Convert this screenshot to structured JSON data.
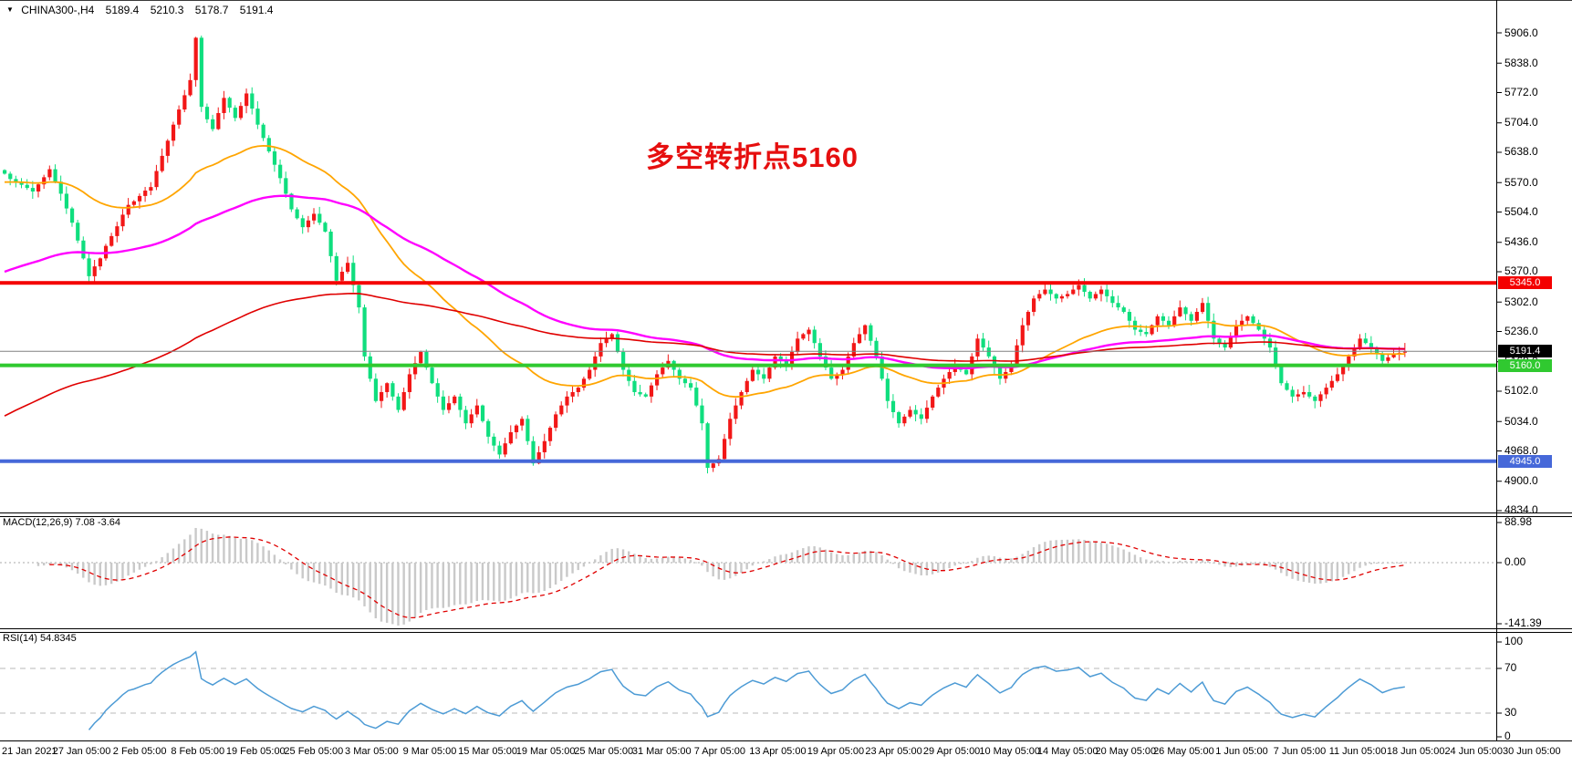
{
  "header": {
    "symbol": "CHINA300-,H4",
    "open": "5189.4",
    "high": "5210.3",
    "low": "5178.7",
    "close": "5191.4",
    "collapse_icon": "▼"
  },
  "annotation": {
    "text": "多空转折点5160",
    "color": "#e60f0f"
  },
  "colors": {
    "bull": "#f21717",
    "bear": "#0fde7e",
    "macd_hist": "#c9c9c9",
    "macd_signal": "#e00000",
    "rsi_line": "#4d9bd5",
    "level_dashed": "#b9b9b9",
    "price_line": "#808080",
    "last_tag_bg": "#000000"
  },
  "main_chart": {
    "y_ticks": [
      "5906.0",
      "5838.0",
      "5772.0",
      "5704.0",
      "5638.0",
      "5570.0",
      "5504.0",
      "5436.0",
      "5370.0",
      "5302.0",
      "5236.0",
      "5168.0",
      "5102.0",
      "5034.0",
      "4968.0",
      "4900.0",
      "4834.0"
    ],
    "hlines": [
      {
        "price": 5345.0,
        "label": "5345.0",
        "color": "#f40000",
        "thickness": 4
      },
      {
        "price": 5160.0,
        "label": "5160.0",
        "color": "#30c930",
        "thickness": 4
      },
      {
        "price": 4945.0,
        "label": "4945.0",
        "color": "#4668d9",
        "thickness": 4
      }
    ],
    "price_line": {
      "price": 5191.4,
      "label": "5191.4"
    }
  },
  "chart_data": {
    "type": "candlestick",
    "symbol": "CHINA300-",
    "timeframe": "H4",
    "title": "CHINA300-,H4 5189.4 5210.3 5178.7 5191.4",
    "ylim": [
      4822,
      5939
    ],
    "up_color_convention": "red-up-green-down",
    "closes": [
      5590,
      5578,
      5570,
      5565,
      5558,
      5550,
      5566,
      5582,
      5600,
      5572,
      5545,
      5512,
      5480,
      5440,
      5400,
      5360,
      5382,
      5400,
      5428,
      5450,
      5472,
      5498,
      5520,
      5528,
      5540,
      5552,
      5560,
      5596,
      5630,
      5664,
      5700,
      5734,
      5766,
      5800,
      5895,
      5740,
      5712,
      5690,
      5726,
      5760,
      5738,
      5715,
      5742,
      5770,
      5736,
      5700,
      5670,
      5640,
      5610,
      5580,
      5545,
      5510,
      5490,
      5470,
      5485,
      5500,
      5480,
      5460,
      5405,
      5350,
      5370,
      5390,
      5340,
      5290,
      5180,
      5130,
      5080,
      5100,
      5120,
      5090,
      5060,
      5100,
      5140,
      5165,
      5190,
      5155,
      5120,
      5090,
      5060,
      5075,
      5090,
      5060,
      5030,
      5050,
      5070,
      5035,
      5000,
      4980,
      4960,
      4985,
      5010,
      5025,
      5040,
      4990,
      4940,
      4965,
      4990,
      5020,
      5050,
      5070,
      5090,
      5100,
      5110,
      5130,
      5150,
      5180,
      5210,
      5220,
      5230,
      5190,
      5150,
      5125,
      5100,
      5095,
      5090,
      5115,
      5140,
      5155,
      5170,
      5150,
      5130,
      5120,
      5110,
      5070,
      5030,
      4930,
      4940,
      4950,
      4995,
      5040,
      5070,
      5100,
      5125,
      5150,
      5140,
      5130,
      5155,
      5180,
      5170,
      5160,
      5190,
      5220,
      5230,
      5240,
      5210,
      5180,
      5155,
      5130,
      5140,
      5150,
      5180,
      5210,
      5230,
      5250,
      5215,
      5180,
      5130,
      5080,
      5055,
      5030,
      5045,
      5060,
      5050,
      5040,
      5065,
      5090,
      5110,
      5130,
      5145,
      5160,
      5150,
      5140,
      5180,
      5220,
      5200,
      5180,
      5155,
      5130,
      5145,
      5160,
      5205,
      5250,
      5280,
      5310,
      5320,
      5330,
      5320,
      5310,
      5315,
      5320,
      5330,
      5340,
      5325,
      5310,
      5320,
      5330,
      5315,
      5300,
      5290,
      5280,
      5260,
      5240,
      5235,
      5230,
      5250,
      5270,
      5260,
      5250,
      5270,
      5290,
      5275,
      5260,
      5280,
      5300,
      5260,
      5220,
      5210,
      5200,
      5225,
      5250,
      5260,
      5270,
      5255,
      5240,
      5220,
      5200,
      5160,
      5120,
      5105,
      5090,
      5095,
      5100,
      5090,
      5080,
      5095,
      5110,
      5125,
      5140,
      5160,
      5180,
      5200,
      5220,
      5210,
      5200,
      5185,
      5170,
      5178,
      5185,
      5188,
      5191.4
    ],
    "last_ohlc": {
      "open": 5189.4,
      "high": 5210.3,
      "low": 5178.7,
      "close": 5191.4
    },
    "moving_averages": [
      {
        "name": "ma-fast",
        "color": "#ffa500",
        "seed": 5570,
        "k": 0.05,
        "width": 1.8
      },
      {
        "name": "ma-medium",
        "color": "#ff00ff",
        "seed": 5365,
        "k": 0.022,
        "width": 2.4
      },
      {
        "name": "ma-slow",
        "color": "#e00000",
        "seed": 5040,
        "k": 0.012,
        "width": 1.6
      }
    ],
    "macd": {
      "label": "MACD(12,26,9) 7.08 -3.64",
      "params": [
        12,
        26,
        9
      ],
      "main_value": 7.08,
      "signal_value": -3.64,
      "ticks": [
        "88.98",
        "0.00",
        "-141.39"
      ]
    },
    "rsi": {
      "label": "RSI(14) 54.8345",
      "period": 14,
      "value": 54.8345,
      "ticks": [
        "100",
        "70",
        "30",
        "0"
      ],
      "levels": [
        70,
        30
      ]
    },
    "x_labels": [
      "21 Jan 2021",
      "27 Jan 05:00",
      "2 Feb 05:00",
      "8 Feb 05:00",
      "19 Feb 05:00",
      "25 Feb 05:00",
      "3 Mar 05:00",
      "9 Mar 05:00",
      "15 Mar 05:00",
      "19 Mar 05:00",
      "25 Mar 05:00",
      "31 Mar 05:00",
      "7 Apr 05:00",
      "13 Apr 05:00",
      "19 Apr 05:00",
      "23 Apr 05:00",
      "29 Apr 05:00",
      "10 May 05:00",
      "14 May 05:00",
      "20 May 05:00",
      "26 May 05:00",
      "1 Jun 05:00",
      "7 Jun 05:00",
      "11 Jun 05:00",
      "18 Jun 05:00",
      "24 Jun 05:00",
      "30 Jun 05:00"
    ]
  }
}
